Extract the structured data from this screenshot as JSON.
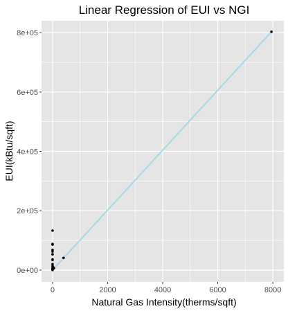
{
  "chart_data": {
    "type": "scatter",
    "title": "Linear Regression of EUI vs NGI",
    "xlabel": "Natural Gas Intensity(therms/sqft)",
    "ylabel": "EUI(kBtu/sqft)",
    "xlim": [
      -400,
      8400
    ],
    "ylim": [
      -40000,
      840000
    ],
    "x_ticks": [
      0,
      2000,
      4000,
      6000,
      8000
    ],
    "x_tick_labels": [
      "0",
      "2000",
      "4000",
      "6000",
      "8000"
    ],
    "y_ticks": [
      0,
      200000,
      400000,
      600000,
      800000
    ],
    "y_tick_labels": [
      "0e+00",
      "2e+05",
      "4e+05",
      "6e+05",
      "8e+05"
    ],
    "grid": true,
    "panel_background": "#e5e5e5",
    "grid_color": "#ffffff",
    "point_color": "#000000",
    "points": [
      {
        "x": 0,
        "y": 133000
      },
      {
        "x": 0,
        "y": 88000
      },
      {
        "x": 0,
        "y": 86000
      },
      {
        "x": 0,
        "y": 68000
      },
      {
        "x": 0,
        "y": 62000
      },
      {
        "x": 0,
        "y": 53000
      },
      {
        "x": 0,
        "y": 36000
      },
      {
        "x": 0,
        "y": 34000
      },
      {
        "x": 0,
        "y": 20000
      },
      {
        "x": 0,
        "y": 14000
      },
      {
        "x": 0,
        "y": 9000
      },
      {
        "x": 0,
        "y": 5000
      },
      {
        "x": 0,
        "y": 2000
      },
      {
        "x": 0,
        "y": 0
      },
      {
        "x": 30,
        "y": 9000
      },
      {
        "x": 50,
        "y": 6000
      },
      {
        "x": 400,
        "y": 41000
      },
      {
        "x": 7950,
        "y": 803000
      }
    ],
    "regression_line": {
      "color": "#add8e6",
      "x": [
        0,
        7950
      ],
      "y": 0
    },
    "regression_line_y": [
      0,
      803000
    ]
  }
}
